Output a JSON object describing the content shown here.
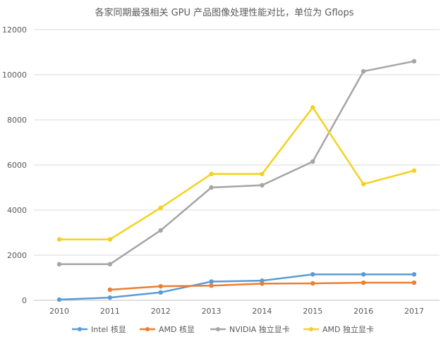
{
  "chart_data": {
    "type": "line",
    "title": "各家同期最强相关 GPU 产品图像处理性能对比，单位为 Gflops",
    "xlabel": "",
    "ylabel": "",
    "categories": [
      "2010",
      "2011",
      "2012",
      "2013",
      "2014",
      "2015",
      "2016",
      "2017"
    ],
    "ylim": [
      0,
      12000
    ],
    "yticks": [
      0,
      2000,
      4000,
      6000,
      8000,
      10000,
      12000
    ],
    "ytick_labels": [
      "0",
      "2000",
      "4000",
      "6000",
      "8000",
      "10000",
      "12000"
    ],
    "grid": true,
    "legend_position": "bottom",
    "series": [
      {
        "name": "Intel 核显",
        "color": "#5b9bd5",
        "values": [
          30,
          120,
          350,
          830,
          870,
          1150,
          1150,
          1150
        ]
      },
      {
        "name": "AMD 核显",
        "color": "#ed7d31",
        "values": [
          null,
          470,
          620,
          650,
          740,
          750,
          780,
          780
        ]
      },
      {
        "name": "NVIDIA 独立显卡",
        "color": "#a5a5a5",
        "values": [
          1600,
          1600,
          3100,
          5000,
          5100,
          6150,
          10150,
          10600
        ]
      },
      {
        "name": "AMD 独立显卡",
        "color": "#f3d21e",
        "values": [
          2700,
          2700,
          4100,
          5600,
          5600,
          8550,
          5150,
          5750
        ]
      }
    ]
  }
}
